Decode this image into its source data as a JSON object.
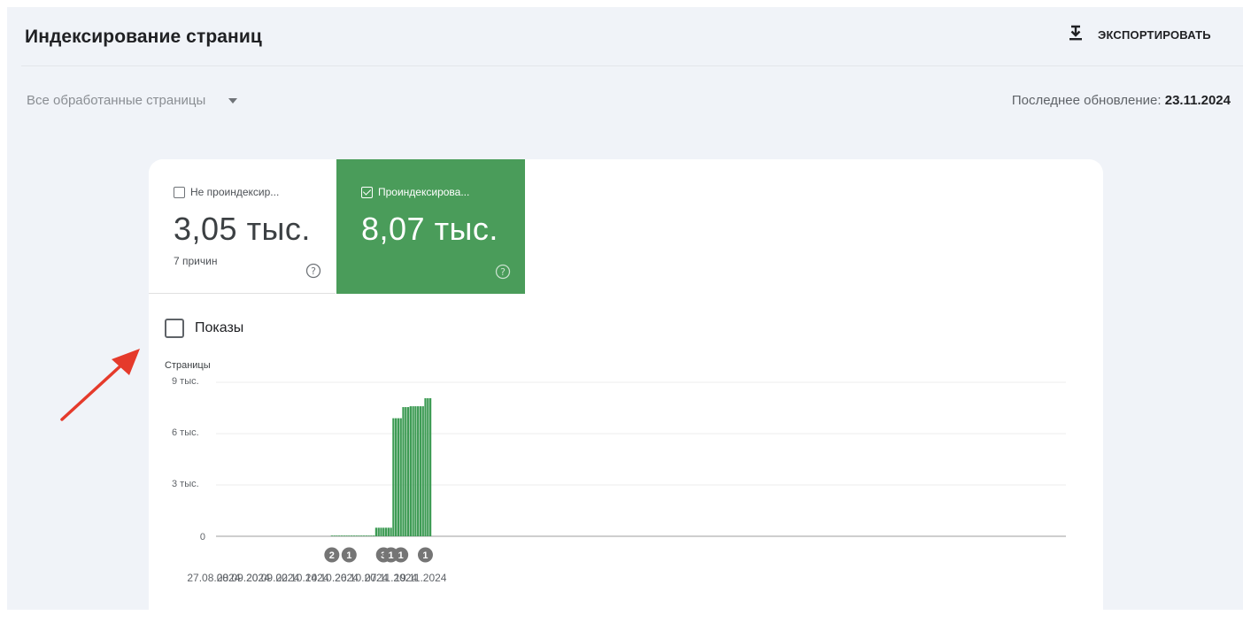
{
  "header": {
    "title": "Индексирование страниц",
    "export_label": "ЭКСПОРТИРОВАТЬ",
    "export_icon": "download-icon"
  },
  "filter": {
    "selected": "Все обработанные страницы",
    "icon": "chevron-down-icon"
  },
  "last_update": {
    "label": "Последнее обновление: ",
    "date": "23.11.2024"
  },
  "tiles": [
    {
      "label": "Не проиндексир...",
      "value": "3,05 тыс.",
      "sub": "7 причин",
      "checked": false,
      "color": "#ffffff"
    },
    {
      "label": "Проиндексирова...",
      "value": "8,07 тыс.",
      "sub": "",
      "checked": true,
      "color": "#4a9c5a"
    }
  ],
  "impressions": {
    "label": "Показы",
    "checked": false
  },
  "colors": {
    "bar": "#3d9b54",
    "annotation": "#757575",
    "arrow": "#e53a2b"
  },
  "chart_data": {
    "type": "bar",
    "ylabel": "Страницы",
    "ylim": [
      0,
      9000
    ],
    "yticks": [
      {
        "value": 0,
        "label": "0"
      },
      {
        "value": 3000,
        "label": "3 тыс."
      },
      {
        "value": 6000,
        "label": "6 тыс."
      },
      {
        "value": 9000,
        "label": "9 тыс."
      }
    ],
    "xticks": [
      "27.08.2024",
      "08.09.2024",
      "20.09.2024",
      "02.10.2024",
      "14.10.2024",
      "26.10.2024",
      "07.11.2024",
      "19.11.2024"
    ],
    "x_start": "2024-08-27",
    "x_end": "2024-11-23",
    "series": [
      {
        "values": [
          {
            "date": "2024-10-14",
            "value": 40
          },
          {
            "date": "2024-10-15",
            "value": 40
          },
          {
            "date": "2024-10-16",
            "value": 40
          },
          {
            "date": "2024-10-17",
            "value": 40
          },
          {
            "date": "2024-10-18",
            "value": 40
          },
          {
            "date": "2024-10-19",
            "value": 40
          },
          {
            "date": "2024-10-20",
            "value": 40
          },
          {
            "date": "2024-10-21",
            "value": 40
          },
          {
            "date": "2024-10-22",
            "value": 40
          },
          {
            "date": "2024-10-23",
            "value": 40
          },
          {
            "date": "2024-10-24",
            "value": 40
          },
          {
            "date": "2024-10-25",
            "value": 40
          },
          {
            "date": "2024-10-26",
            "value": 40
          },
          {
            "date": "2024-10-27",
            "value": 40
          },
          {
            "date": "2024-10-28",
            "value": 40
          },
          {
            "date": "2024-10-29",
            "value": 40
          },
          {
            "date": "2024-10-30",
            "value": 40
          },
          {
            "date": "2024-10-31",
            "value": 40
          },
          {
            "date": "2024-11-01",
            "value": 500
          },
          {
            "date": "2024-11-02",
            "value": 500
          },
          {
            "date": "2024-11-03",
            "value": 500
          },
          {
            "date": "2024-11-04",
            "value": 500
          },
          {
            "date": "2024-11-05",
            "value": 500
          },
          {
            "date": "2024-11-06",
            "value": 500
          },
          {
            "date": "2024-11-07",
            "value": 500
          },
          {
            "date": "2024-11-08",
            "value": 6900
          },
          {
            "date": "2024-11-09",
            "value": 6900
          },
          {
            "date": "2024-11-10",
            "value": 6900
          },
          {
            "date": "2024-11-11",
            "value": 6900
          },
          {
            "date": "2024-11-12",
            "value": 7550
          },
          {
            "date": "2024-11-13",
            "value": 7550
          },
          {
            "date": "2024-11-14",
            "value": 7550
          },
          {
            "date": "2024-11-15",
            "value": 7600
          },
          {
            "date": "2024-11-16",
            "value": 7600
          },
          {
            "date": "2024-11-17",
            "value": 7600
          },
          {
            "date": "2024-11-18",
            "value": 7600
          },
          {
            "date": "2024-11-19",
            "value": 7600
          },
          {
            "date": "2024-11-20",
            "value": 7600
          },
          {
            "date": "2024-11-21",
            "value": 8070
          },
          {
            "date": "2024-11-22",
            "value": 8070
          },
          {
            "date": "2024-11-23",
            "value": 8070
          }
        ]
      }
    ],
    "annotations": [
      {
        "date": "2024-10-14",
        "label": "2"
      },
      {
        "date": "2024-10-21",
        "label": "1"
      },
      {
        "date": "2024-11-04",
        "label": "3"
      },
      {
        "date": "2024-11-07",
        "label": "1"
      },
      {
        "date": "2024-11-11",
        "label": "1"
      },
      {
        "date": "2024-11-21",
        "label": "1"
      }
    ],
    "grid": true,
    "legend": "none"
  }
}
